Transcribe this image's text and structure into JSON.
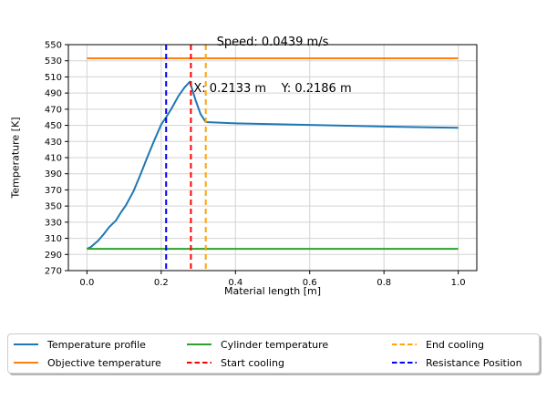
{
  "title": {
    "line1": "Speed: 0.0439 m/s",
    "line2": "X: 0.2133 m    Y: 0.2186 m"
  },
  "chart_data": {
    "type": "line",
    "xlabel": "Material length [m]",
    "ylabel": "Temperature [K]",
    "xlim": [
      -0.05,
      1.05
    ],
    "ylim": [
      270,
      550
    ],
    "xticks": [
      0.0,
      0.2,
      0.4,
      0.6,
      0.8,
      1.0
    ],
    "yticks": [
      270,
      290,
      310,
      330,
      350,
      370,
      390,
      410,
      430,
      450,
      470,
      490,
      510,
      530,
      550
    ],
    "grid": true,
    "grid_color": "#d3d3d3",
    "spine_color": "#000000",
    "series": [
      {
        "name": "Temperature profile",
        "kind": "line",
        "color": "#1f77b4",
        "style": "solid",
        "points": [
          [
            0.0,
            297
          ],
          [
            0.01,
            299
          ],
          [
            0.02,
            303
          ],
          [
            0.03,
            307
          ],
          [
            0.045,
            315
          ],
          [
            0.06,
            324
          ],
          [
            0.078,
            332
          ],
          [
            0.09,
            341
          ],
          [
            0.105,
            351
          ],
          [
            0.125,
            368
          ],
          [
            0.145,
            390
          ],
          [
            0.163,
            411
          ],
          [
            0.182,
            432
          ],
          [
            0.2,
            451
          ],
          [
            0.2133,
            460
          ],
          [
            0.228,
            471
          ],
          [
            0.246,
            486
          ],
          [
            0.263,
            497
          ],
          [
            0.277,
            504
          ],
          [
            0.292,
            482
          ],
          [
            0.306,
            464
          ],
          [
            0.32,
            454
          ],
          [
            0.4,
            452.5
          ],
          [
            0.5,
            451.5
          ],
          [
            0.6,
            450.5
          ],
          [
            0.7,
            449.5
          ],
          [
            0.8,
            448.5
          ],
          [
            0.9,
            447.7
          ],
          [
            1.0,
            447
          ]
        ]
      },
      {
        "name": "Objective temperature",
        "kind": "hline",
        "color": "#ff7f0e",
        "style": "solid",
        "y": 533,
        "x_range": [
          0.0,
          1.0
        ]
      },
      {
        "name": "Cylinder temperature",
        "kind": "hline",
        "color": "#2ca02c",
        "style": "solid",
        "y": 297,
        "x_range": [
          0.0,
          1.0
        ]
      },
      {
        "name": "Start cooling",
        "kind": "vline",
        "color": "#ff0000",
        "style": "dashed",
        "x": 0.28
      },
      {
        "name": "End cooling",
        "kind": "vline",
        "color": "#ffa500",
        "style": "dashed",
        "x": 0.32
      },
      {
        "name": "Resistance Position",
        "kind": "vline",
        "color": "#0000ff",
        "style": "dashed",
        "x": 0.2133
      }
    ],
    "legend": {
      "position": "bottom",
      "columns": [
        [
          0,
          1
        ],
        [
          2,
          3
        ],
        [
          4,
          5
        ]
      ]
    }
  }
}
